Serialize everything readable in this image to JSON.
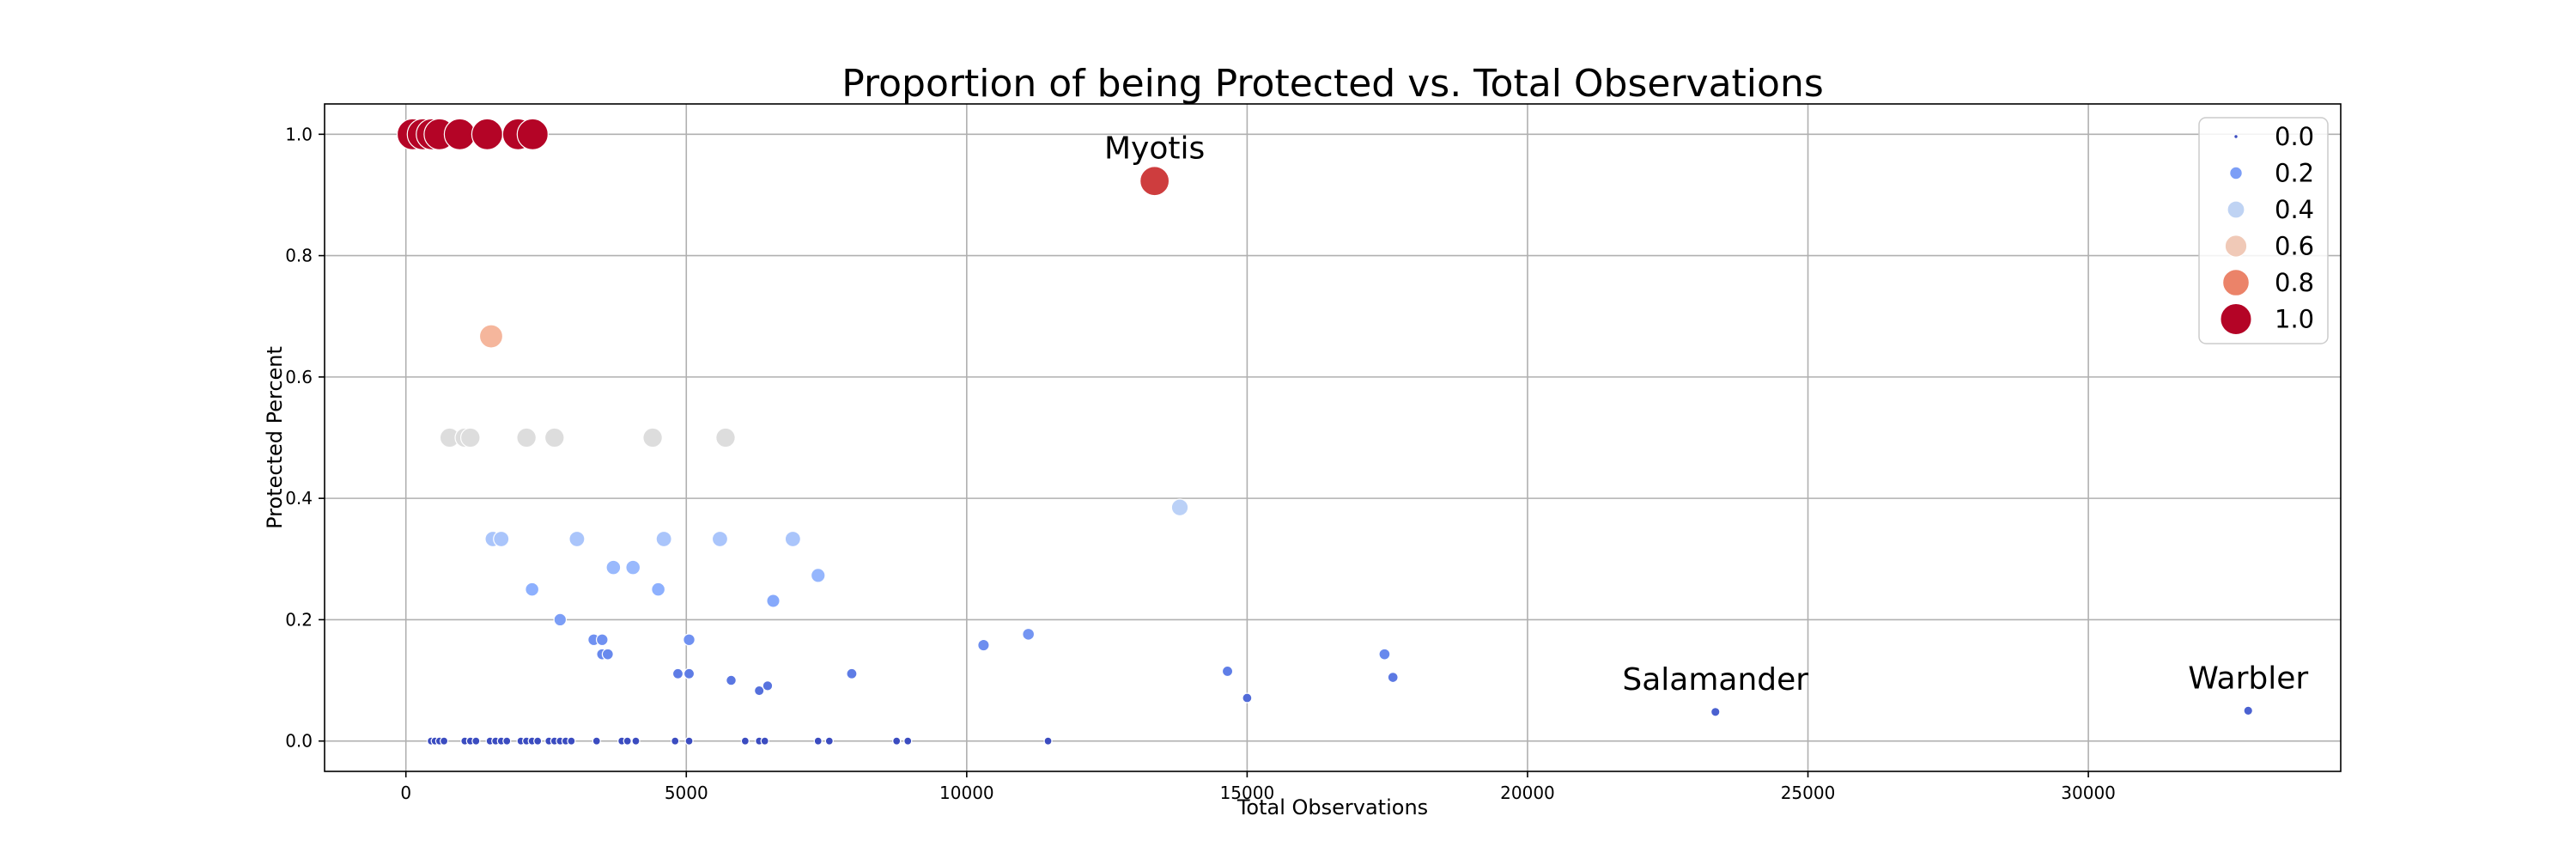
{
  "chart_data": {
    "type": "scatter",
    "title": "Proportion of being Protected vs. Total Observations",
    "xlabel": "Total Observations",
    "ylabel": "Protected Percent",
    "xlim": [
      -1450,
      34500
    ],
    "ylim": [
      -0.05,
      1.05
    ],
    "xticks": [
      0,
      5000,
      10000,
      15000,
      20000,
      25000,
      30000
    ],
    "yticks": [
      0.0,
      0.2,
      0.4,
      0.6,
      0.8,
      1.0
    ],
    "xtick_labels": [
      "0",
      "5000",
      "10000",
      "15000",
      "20000",
      "25000",
      "30000"
    ],
    "ytick_labels": [
      "0.0",
      "0.2",
      "0.4",
      "0.6",
      "0.8",
      "1.0"
    ],
    "grid": true,
    "hue_and_size": "Protected Percent",
    "colormap": "coolwarm",
    "legend": {
      "placement": "top-right",
      "entries": [
        "0.0",
        "0.2",
        "0.4",
        "0.6",
        "0.8",
        "1.0"
      ],
      "values": [
        0.0,
        0.2,
        0.4,
        0.6,
        0.8,
        1.0
      ]
    },
    "annotations": [
      {
        "text": "Myotis",
        "x": 13350,
        "y": 0.923
      },
      {
        "text": "Salamander",
        "x": 23350,
        "y": 0.048
      },
      {
        "text": "Warbler",
        "x": 32850,
        "y": 0.05
      }
    ],
    "points": [
      {
        "x": 120,
        "y": 1.0
      },
      {
        "x": 300,
        "y": 1.0
      },
      {
        "x": 460,
        "y": 1.0
      },
      {
        "x": 600,
        "y": 1.0
      },
      {
        "x": 960,
        "y": 1.0
      },
      {
        "x": 1450,
        "y": 1.0
      },
      {
        "x": 2000,
        "y": 1.0
      },
      {
        "x": 2260,
        "y": 1.0
      },
      {
        "x": 13350,
        "y": 0.923
      },
      {
        "x": 1520,
        "y": 0.667
      },
      {
        "x": 780,
        "y": 0.5
      },
      {
        "x": 1050,
        "y": 0.5
      },
      {
        "x": 1150,
        "y": 0.5
      },
      {
        "x": 2150,
        "y": 0.5
      },
      {
        "x": 2650,
        "y": 0.5
      },
      {
        "x": 4400,
        "y": 0.5
      },
      {
        "x": 5700,
        "y": 0.5
      },
      {
        "x": 13800,
        "y": 0.385
      },
      {
        "x": 1550,
        "y": 0.333
      },
      {
        "x": 1700,
        "y": 0.333
      },
      {
        "x": 3050,
        "y": 0.333
      },
      {
        "x": 4600,
        "y": 0.333
      },
      {
        "x": 5600,
        "y": 0.333
      },
      {
        "x": 6900,
        "y": 0.333
      },
      {
        "x": 3700,
        "y": 0.286
      },
      {
        "x": 4050,
        "y": 0.286
      },
      {
        "x": 7350,
        "y": 0.273
      },
      {
        "x": 2250,
        "y": 0.25
      },
      {
        "x": 4500,
        "y": 0.25
      },
      {
        "x": 6550,
        "y": 0.231
      },
      {
        "x": 2750,
        "y": 0.2
      },
      {
        "x": 11100,
        "y": 0.176
      },
      {
        "x": 3350,
        "y": 0.167
      },
      {
        "x": 3500,
        "y": 0.167
      },
      {
        "x": 5050,
        "y": 0.167
      },
      {
        "x": 10300,
        "y": 0.158
      },
      {
        "x": 3500,
        "y": 0.143
      },
      {
        "x": 3600,
        "y": 0.143
      },
      {
        "x": 17450,
        "y": 0.143
      },
      {
        "x": 14650,
        "y": 0.115
      },
      {
        "x": 4850,
        "y": 0.111
      },
      {
        "x": 5050,
        "y": 0.111
      },
      {
        "x": 7950,
        "y": 0.111
      },
      {
        "x": 17600,
        "y": 0.105
      },
      {
        "x": 5800,
        "y": 0.1
      },
      {
        "x": 6450,
        "y": 0.091
      },
      {
        "x": 6300,
        "y": 0.083
      },
      {
        "x": 15000,
        "y": 0.071
      },
      {
        "x": 32850,
        "y": 0.05
      },
      {
        "x": 23350,
        "y": 0.048
      },
      {
        "x": 450,
        "y": 0.0
      },
      {
        "x": 520,
        "y": 0.0
      },
      {
        "x": 600,
        "y": 0.0
      },
      {
        "x": 680,
        "y": 0.0
      },
      {
        "x": 1050,
        "y": 0.0
      },
      {
        "x": 1150,
        "y": 0.0
      },
      {
        "x": 1250,
        "y": 0.0
      },
      {
        "x": 1500,
        "y": 0.0
      },
      {
        "x": 1600,
        "y": 0.0
      },
      {
        "x": 1700,
        "y": 0.0
      },
      {
        "x": 1800,
        "y": 0.0
      },
      {
        "x": 2050,
        "y": 0.0
      },
      {
        "x": 2150,
        "y": 0.0
      },
      {
        "x": 2250,
        "y": 0.0
      },
      {
        "x": 2350,
        "y": 0.0
      },
      {
        "x": 2550,
        "y": 0.0
      },
      {
        "x": 2650,
        "y": 0.0
      },
      {
        "x": 2750,
        "y": 0.0
      },
      {
        "x": 2850,
        "y": 0.0
      },
      {
        "x": 2950,
        "y": 0.0
      },
      {
        "x": 3400,
        "y": 0.0
      },
      {
        "x": 3850,
        "y": 0.0
      },
      {
        "x": 3950,
        "y": 0.0
      },
      {
        "x": 4100,
        "y": 0.0
      },
      {
        "x": 4800,
        "y": 0.0
      },
      {
        "x": 5050,
        "y": 0.0
      },
      {
        "x": 6050,
        "y": 0.0
      },
      {
        "x": 6300,
        "y": 0.0
      },
      {
        "x": 6400,
        "y": 0.0
      },
      {
        "x": 7350,
        "y": 0.0
      },
      {
        "x": 7550,
        "y": 0.0
      },
      {
        "x": 8750,
        "y": 0.0
      },
      {
        "x": 8950,
        "y": 0.0
      },
      {
        "x": 11450,
        "y": 0.0
      }
    ]
  }
}
